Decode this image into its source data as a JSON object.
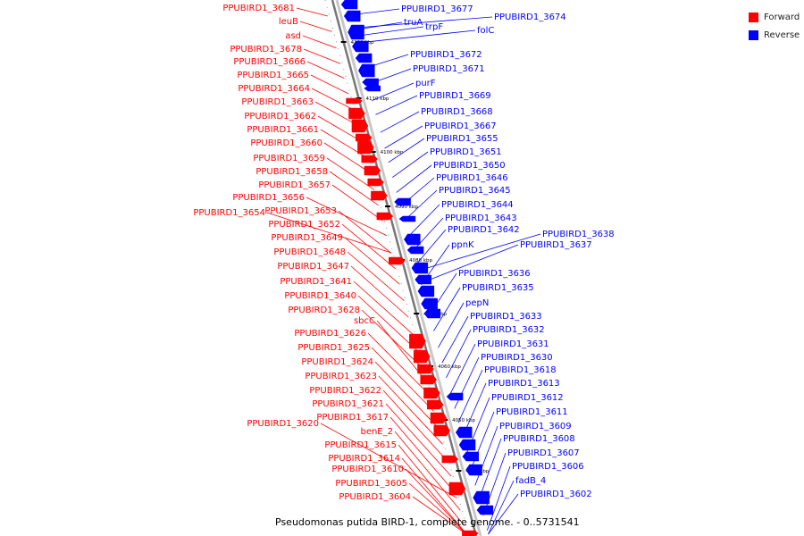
{
  "legend": {
    "forward_label": "Forward",
    "reverse_label": "Reverse",
    "forward_color": "#ff0000",
    "reverse_color": "#0000ff"
  },
  "caption": "Pseudomonas putida BIRD-1, complete genome. - 0..5731541",
  "scale_ticks": [
    "4120 kbp",
    "4110 kbp",
    "4100 kbp",
    "4090 kbp",
    "4080 kbp",
    "4070 kbp",
    "4060 kbp",
    "4050 kbp",
    "4040 kbp"
  ],
  "forward_genes": [
    "PPUBIRD1_3681",
    "leuB",
    "asd",
    "PPUBIRD1_3678",
    "PPUBIRD1_3666",
    "PPUBIRD1_3665",
    "PPUBIRD1_3664",
    "PPUBIRD1_3663",
    "PPUBIRD1_3662",
    "PPUBIRD1_3661",
    "PPUBIRD1_3660",
    "PPUBIRD1_3659",
    "PPUBIRD1_3658",
    "PPUBIRD1_3657",
    "PPUBIRD1_3656",
    "PPUBIRD1_3654",
    "PPUBIRD1_3653",
    "PPUBIRD1_3652",
    "PPUBIRD1_3649",
    "PPUBIRD1_3648",
    "PPUBIRD1_3647",
    "PPUBIRD1_3641",
    "PPUBIRD1_3640",
    "PPUBIRD1_3628",
    "sbcC",
    "PPUBIRD1_3626",
    "PPUBIRD1_3625",
    "PPUBIRD1_3624",
    "PPUBIRD1_3623",
    "PPUBIRD1_3622",
    "PPUBIRD1_3621",
    "PPUBIRD1_3620",
    "PPUBIRD1_3617",
    "benE_2",
    "PPUBIRD1_3615",
    "PPUBIRD1_3614",
    "PPUBIRD1_3610",
    "PPUBIRD1_3605",
    "PPUBIRD1_3604"
  ],
  "reverse_genes": [
    "PPUBIRD1_3677",
    "truA",
    "trpF",
    "PPUBIRD1_3674",
    "folC",
    "PPUBIRD1_3672",
    "PPUBIRD1_3671",
    "purF",
    "PPUBIRD1_3669",
    "PPUBIRD1_3668",
    "PPUBIRD1_3667",
    "PPUBIRD1_3655",
    "PPUBIRD1_3651",
    "PPUBIRD1_3650",
    "PPUBIRD1_3646",
    "PPUBIRD1_3645",
    "PPUBIRD1_3644",
    "PPUBIRD1_3643",
    "PPUBIRD1_3642",
    "PPUBIRD1_3638",
    "PPUBIRD1_3637",
    "ppnK",
    "PPUBIRD1_3636",
    "PPUBIRD1_3635",
    "pepN",
    "PPUBIRD1_3633",
    "PPUBIRD1_3632",
    "PPUBIRD1_3631",
    "PPUBIRD1_3630",
    "PPUBIRD1_3618",
    "PPUBIRD1_3613",
    "PPUBIRD1_3612",
    "PPUBIRD1_3611",
    "PPUBIRD1_3609",
    "PPUBIRD1_3608",
    "PPUBIRD1_3607",
    "PPUBIRD1_3606",
    "fadB_4",
    "PPUBIRD1_3602"
  ]
}
